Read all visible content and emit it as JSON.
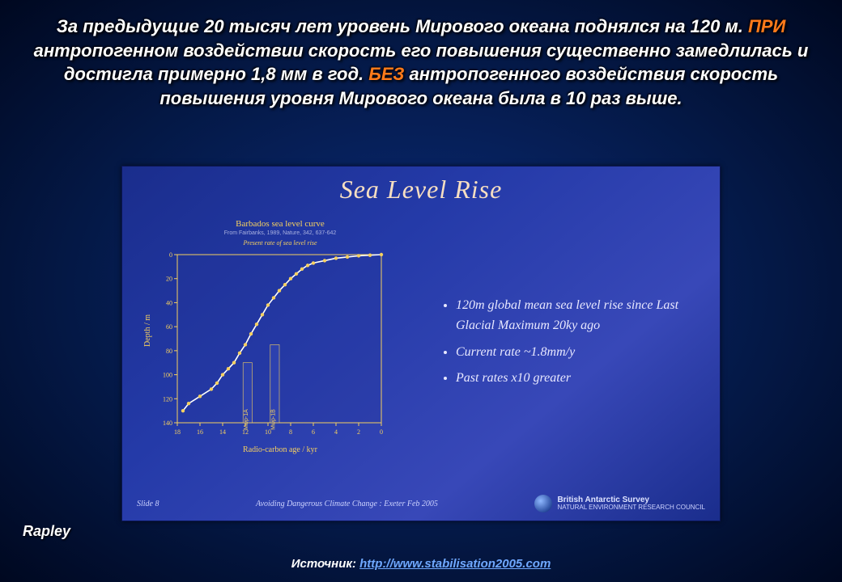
{
  "heading": {
    "parts": [
      {
        "t": "За предыдущие 20 тысяч лет уровень Мирового океана поднялся на 120 м. ",
        "cls": ""
      },
      {
        "t": "ПРИ",
        "cls": "accent"
      },
      {
        "t": " антропогенном воздействии скорость его повышения существенно замедлилась и достигла примерно 1,8 мм в год. ",
        "cls": ""
      },
      {
        "t": "БЕЗ",
        "cls": "accent"
      },
      {
        "t": " антропогенного воздействия скорость повышения уровня Мирового океана была в 10 раз выше.",
        "cls": ""
      }
    ]
  },
  "inner_title": "Sea Level Rise",
  "chart": {
    "title": "Barbados sea level curve",
    "subtitle": "From Fairbanks, 1989, Nature, 342, 637-642",
    "rate_label": "Present rate of sea level rise",
    "y_label": "Depth / m",
    "x_label": "Radio-carbon age / kyr",
    "ylim": [
      140,
      0
    ],
    "yticks": [
      0,
      20,
      40,
      60,
      80,
      100,
      120,
      140
    ],
    "xlim": [
      18,
      0
    ],
    "xticks": [
      18,
      16,
      14,
      12,
      10,
      8,
      6,
      4,
      2,
      0
    ],
    "background": "#223599",
    "axis_color": "#f5d060",
    "tick_color": "#f5d060",
    "curve_color": "#ffffff",
    "point_color": "#f5d060",
    "bar_fill": "#3a4ec0",
    "bar_stroke": "#f5d060",
    "points_age_depth": [
      [
        17.5,
        130
      ],
      [
        17.0,
        124
      ],
      [
        16.0,
        118
      ],
      [
        15.0,
        112
      ],
      [
        14.5,
        107
      ],
      [
        14.0,
        100
      ],
      [
        13.5,
        95
      ],
      [
        13.0,
        90
      ],
      [
        12.5,
        82
      ],
      [
        12.0,
        75
      ],
      [
        11.5,
        66
      ],
      [
        11.0,
        58
      ],
      [
        10.5,
        50
      ],
      [
        10.0,
        42
      ],
      [
        9.5,
        36
      ],
      [
        9.0,
        30
      ],
      [
        8.5,
        25
      ],
      [
        8.0,
        20
      ],
      [
        7.5,
        16
      ],
      [
        7.0,
        12
      ],
      [
        6.5,
        9
      ],
      [
        6.0,
        7
      ],
      [
        5.0,
        5
      ],
      [
        4.0,
        3
      ],
      [
        3.0,
        2
      ],
      [
        2.0,
        1
      ],
      [
        1.0,
        0.5
      ],
      [
        0.0,
        0
      ]
    ],
    "mwp_bars": [
      {
        "label": "Mwp-1A",
        "x": 11.8,
        "w": 0.8,
        "h": 90
      },
      {
        "label": "Mwp-1B",
        "x": 9.4,
        "w": 0.8,
        "h": 75
      }
    ]
  },
  "bullets": [
    "120m global mean sea level rise since Last Glacial Maximum  20ky ago",
    "Current rate ~1.8mm/y",
    "Past rates x10 greater"
  ],
  "footer": {
    "slide_num": "Slide 8",
    "conf": "Avoiding Dangerous Climate Change : Exeter Feb 2005",
    "logo_main": "British Antarctic Survey",
    "logo_sub": "NATURAL ENVIRONMENT RESEARCH COUNCIL"
  },
  "rapley": "Rapley",
  "source_label": "Источник",
  "source_url": "http://www.stabilisation2005.com"
}
